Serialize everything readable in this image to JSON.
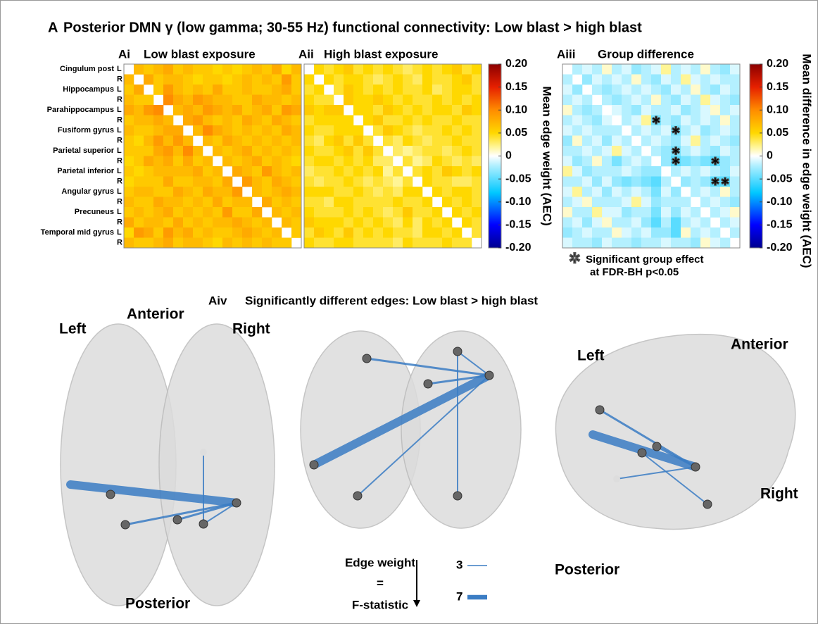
{
  "figure_label": "A",
  "title": "Posterior DMN γ (low gamma; 30-55 Hz) functional connectivity: Low blast > high blast",
  "regions": [
    "Cingulum post",
    "Hippocampus",
    "Parahippocampus",
    "Fusiform gyrus",
    "Parietal superior",
    "Parietal inferior",
    "Angular gyrus",
    "Precuneus",
    "Temporal mid gyrus"
  ],
  "sides": [
    "L",
    "R"
  ],
  "chart_data": [
    {
      "type": "heatmap",
      "panel": "Ai",
      "title": "Low blast exposure",
      "zlim": [
        -0.2,
        0.2
      ],
      "zticks": [
        {
          "value": 0.2,
          "label": "0.20"
        },
        0.15,
        {
          "value": 0.1,
          "label": "0.10"
        },
        0.05,
        0,
        -0.05,
        {
          "value": -0.1,
          "label": "-0.10"
        },
        -0.15,
        {
          "value": -0.2,
          "label": "-0.20"
        }
      ],
      "colorbar_label": "Mean edge weight (AEC)",
      "values": [
        [
          null,
          0.07,
          0.06,
          0.07,
          0.08,
          0.06,
          0.07,
          0.06,
          0.06,
          0.05,
          0.06,
          0.05,
          0.06,
          0.07,
          0.06,
          0.08,
          0.05,
          0.07
        ],
        [
          0.07,
          null,
          0.08,
          0.06,
          0.07,
          0.07,
          0.06,
          0.05,
          0.06,
          0.06,
          0.05,
          0.06,
          0.07,
          0.06,
          0.07,
          0.06,
          0.09,
          0.06
        ],
        [
          0.06,
          0.08,
          null,
          0.06,
          0.09,
          0.07,
          0.06,
          0.07,
          0.06,
          0.08,
          0.06,
          0.06,
          0.07,
          0.06,
          0.06,
          0.07,
          0.08,
          0.06
        ],
        [
          0.07,
          0.06,
          0.06,
          null,
          0.1,
          0.08,
          0.07,
          0.09,
          0.08,
          0.07,
          0.07,
          0.06,
          0.06,
          0.08,
          0.07,
          0.07,
          0.06,
          0.07
        ],
        [
          0.08,
          0.07,
          0.09,
          0.1,
          null,
          0.07,
          0.08,
          0.07,
          0.09,
          0.08,
          0.07,
          0.08,
          0.06,
          0.07,
          0.08,
          0.06,
          0.09,
          0.08
        ],
        [
          0.06,
          0.07,
          0.07,
          0.08,
          0.07,
          null,
          0.08,
          0.09,
          0.07,
          0.06,
          0.07,
          0.06,
          0.08,
          0.07,
          0.06,
          0.08,
          0.07,
          0.06
        ],
        [
          0.07,
          0.06,
          0.06,
          0.07,
          0.08,
          0.08,
          null,
          0.07,
          0.1,
          0.08,
          0.07,
          0.06,
          0.07,
          0.06,
          0.07,
          0.06,
          0.08,
          0.07
        ],
        [
          0.06,
          0.05,
          0.07,
          0.09,
          0.07,
          0.09,
          0.07,
          null,
          0.07,
          0.06,
          0.08,
          0.07,
          0.06,
          0.07,
          0.06,
          0.07,
          0.06,
          0.07
        ],
        [
          0.06,
          0.06,
          0.06,
          0.08,
          0.09,
          0.07,
          0.1,
          0.07,
          null,
          0.07,
          0.06,
          0.07,
          0.08,
          0.06,
          0.07,
          0.06,
          0.07,
          0.06
        ],
        [
          0.05,
          0.06,
          0.08,
          0.07,
          0.08,
          0.06,
          0.08,
          0.06,
          0.07,
          null,
          0.07,
          0.06,
          0.07,
          0.08,
          0.06,
          0.07,
          0.06,
          0.05
        ],
        [
          0.06,
          0.05,
          0.06,
          0.07,
          0.07,
          0.07,
          0.07,
          0.08,
          0.06,
          0.07,
          null,
          0.08,
          0.07,
          0.06,
          0.09,
          0.07,
          0.06,
          0.07
        ],
        [
          0.05,
          0.06,
          0.06,
          0.06,
          0.08,
          0.06,
          0.06,
          0.07,
          0.07,
          0.06,
          0.08,
          null,
          0.09,
          0.07,
          0.06,
          0.08,
          0.07,
          0.06
        ],
        [
          0.06,
          0.07,
          0.07,
          0.06,
          0.06,
          0.08,
          0.07,
          0.06,
          0.08,
          0.07,
          0.07,
          0.09,
          null,
          0.07,
          0.06,
          0.07,
          0.08,
          0.07
        ],
        [
          0.07,
          0.06,
          0.06,
          0.08,
          0.07,
          0.07,
          0.06,
          0.07,
          0.06,
          0.08,
          0.06,
          0.07,
          0.07,
          null,
          0.08,
          0.06,
          0.07,
          0.06
        ],
        [
          0.06,
          0.07,
          0.06,
          0.07,
          0.08,
          0.06,
          0.07,
          0.06,
          0.07,
          0.06,
          0.09,
          0.06,
          0.06,
          0.08,
          null,
          0.07,
          0.06,
          0.07
        ],
        [
          0.08,
          0.06,
          0.07,
          0.07,
          0.06,
          0.08,
          0.06,
          0.07,
          0.06,
          0.07,
          0.07,
          0.08,
          0.07,
          0.06,
          0.07,
          null,
          0.07,
          0.06
        ],
        [
          0.05,
          0.09,
          0.08,
          0.06,
          0.09,
          0.07,
          0.08,
          0.06,
          0.07,
          0.06,
          0.06,
          0.07,
          0.08,
          0.07,
          0.06,
          0.07,
          null,
          0.06
        ],
        [
          0.07,
          0.06,
          0.06,
          0.07,
          0.08,
          0.06,
          0.07,
          0.07,
          0.06,
          0.05,
          0.07,
          0.06,
          0.07,
          0.06,
          0.07,
          0.06,
          0.06,
          null
        ]
      ]
    },
    {
      "type": "heatmap",
      "panel": "Aii",
      "title": "High blast exposure",
      "zlim": [
        -0.2,
        0.2
      ],
      "values": [
        [
          null,
          0.05,
          0.04,
          0.05,
          0.06,
          0.04,
          0.05,
          0.04,
          0.05,
          0.04,
          0.03,
          0.04,
          0.05,
          0.04,
          0.05,
          0.06,
          0.04,
          0.05
        ],
        [
          0.05,
          null,
          0.05,
          0.04,
          0.05,
          0.05,
          0.04,
          0.03,
          0.04,
          0.05,
          0.04,
          0.03,
          0.05,
          0.04,
          0.04,
          0.05,
          0.06,
          0.04
        ],
        [
          0.04,
          0.05,
          null,
          0.04,
          0.06,
          0.05,
          0.04,
          0.05,
          0.04,
          0.05,
          0.04,
          0.04,
          0.05,
          0.03,
          0.04,
          0.05,
          0.05,
          0.04
        ],
        [
          0.05,
          0.04,
          0.04,
          null,
          0.06,
          0.05,
          0.05,
          0.06,
          0.05,
          0.04,
          0.05,
          0.04,
          0.04,
          0.05,
          0.04,
          0.05,
          0.04,
          0.05
        ],
        [
          0.06,
          0.05,
          0.06,
          0.06,
          null,
          0.05,
          0.05,
          0.04,
          0.06,
          0.05,
          0.04,
          0.05,
          0.04,
          0.05,
          0.05,
          0.04,
          0.06,
          0.05
        ],
        [
          0.04,
          0.05,
          0.05,
          0.05,
          0.05,
          null,
          0.05,
          0.06,
          0.04,
          0.04,
          0.05,
          0.04,
          0.05,
          0.04,
          0.04,
          0.05,
          0.04,
          0.04
        ],
        [
          0.05,
          0.04,
          0.04,
          0.05,
          0.05,
          0.05,
          null,
          0.04,
          0.06,
          0.05,
          0.04,
          0.03,
          0.04,
          0.04,
          0.05,
          0.04,
          0.05,
          0.04
        ],
        [
          0.04,
          0.03,
          0.05,
          0.06,
          0.04,
          0.06,
          0.04,
          null,
          0.04,
          0.03,
          0.05,
          0.04,
          0.03,
          0.04,
          0.04,
          0.05,
          0.04,
          0.04
        ],
        [
          0.05,
          0.04,
          0.04,
          0.05,
          0.06,
          0.04,
          0.06,
          0.04,
          null,
          0.03,
          0.02,
          0.03,
          0.04,
          0.04,
          0.03,
          0.04,
          0.05,
          0.04
        ],
        [
          0.04,
          0.05,
          0.05,
          0.04,
          0.05,
          0.04,
          0.05,
          0.03,
          0.03,
          null,
          0.04,
          0.02,
          0.03,
          0.05,
          0.04,
          0.03,
          0.04,
          0.03
        ],
        [
          0.03,
          0.04,
          0.04,
          0.05,
          0.04,
          0.05,
          0.04,
          0.05,
          0.02,
          0.04,
          null,
          0.04,
          0.05,
          0.04,
          0.06,
          0.05,
          0.04,
          0.05
        ],
        [
          0.04,
          0.03,
          0.04,
          0.04,
          0.05,
          0.04,
          0.03,
          0.04,
          0.03,
          0.02,
          0.04,
          null,
          0.05,
          0.04,
          0.04,
          0.03,
          0.03,
          0.04
        ],
        [
          0.05,
          0.05,
          0.05,
          0.04,
          0.04,
          0.05,
          0.04,
          0.03,
          0.04,
          0.03,
          0.05,
          0.05,
          null,
          0.05,
          0.04,
          0.05,
          0.05,
          0.04
        ],
        [
          0.04,
          0.04,
          0.03,
          0.05,
          0.05,
          0.04,
          0.04,
          0.04,
          0.04,
          0.05,
          0.04,
          0.04,
          0.05,
          null,
          0.05,
          0.04,
          0.05,
          0.04
        ],
        [
          0.05,
          0.04,
          0.04,
          0.04,
          0.05,
          0.04,
          0.05,
          0.04,
          0.03,
          0.04,
          0.06,
          0.04,
          0.04,
          0.05,
          null,
          0.05,
          0.04,
          0.05
        ],
        [
          0.06,
          0.05,
          0.05,
          0.05,
          0.04,
          0.05,
          0.04,
          0.05,
          0.04,
          0.03,
          0.05,
          0.03,
          0.05,
          0.04,
          0.05,
          null,
          0.05,
          0.04
        ],
        [
          0.04,
          0.06,
          0.05,
          0.04,
          0.06,
          0.04,
          0.05,
          0.04,
          0.05,
          0.04,
          0.04,
          0.03,
          0.05,
          0.05,
          0.04,
          0.05,
          null,
          0.04
        ],
        [
          0.05,
          0.04,
          0.04,
          0.05,
          0.05,
          0.04,
          0.04,
          0.04,
          0.04,
          0.03,
          0.05,
          0.04,
          0.04,
          0.04,
          0.05,
          0.04,
          0.04,
          null
        ]
      ]
    },
    {
      "type": "heatmap",
      "panel": "Aiii",
      "title": "Group difference",
      "zlim": [
        -0.2,
        0.2
      ],
      "zticks": [
        {
          "value": 0.2,
          "label": "0.20"
        },
        0.15,
        {
          "value": 0.1,
          "label": "0.10"
        },
        0.05,
        0,
        -0.05,
        {
          "value": -0.1,
          "label": "-0.10"
        },
        -0.15,
        {
          "value": -0.2,
          "label": "-0.20"
        }
      ],
      "colorbar_label": "Mean difference in edge weight (AEC)",
      "significant": [
        [
          5,
          9
        ],
        [
          6,
          11
        ],
        [
          8,
          11
        ],
        [
          9,
          11
        ],
        [
          9,
          15
        ],
        [
          11,
          15
        ],
        [
          11,
          16
        ]
      ],
      "significance_legend": [
        "Significant group effect",
        "at FDR-BH p<0.05"
      ],
      "values": [
        [
          null,
          -0.02,
          -0.01,
          -0.02,
          0.01,
          -0.02,
          -0.01,
          -0.03,
          -0.02,
          -0.01,
          0.02,
          -0.02,
          -0.01,
          -0.02,
          0.01,
          -0.02,
          -0.03,
          -0.01
        ],
        [
          -0.02,
          null,
          -0.03,
          -0.01,
          -0.02,
          -0.01,
          -0.02,
          0.01,
          -0.02,
          -0.03,
          -0.01,
          -0.02,
          0.02,
          -0.01,
          -0.02,
          -0.01,
          -0.02,
          -0.02
        ],
        [
          -0.01,
          -0.03,
          null,
          -0.02,
          -0.03,
          -0.02,
          -0.01,
          -0.02,
          -0.01,
          -0.02,
          -0.03,
          -0.01,
          -0.02,
          0.01,
          -0.02,
          -0.03,
          -0.01,
          -0.02
        ],
        [
          -0.02,
          -0.01,
          -0.02,
          null,
          -0.02,
          -0.03,
          -0.02,
          -0.01,
          -0.02,
          0.01,
          -0.02,
          -0.03,
          -0.01,
          -0.02,
          0.02,
          -0.01,
          -0.02,
          -0.03
        ],
        [
          0.01,
          -0.02,
          -0.03,
          -0.02,
          null,
          -0.01,
          -0.02,
          -0.03,
          -0.01,
          -0.02,
          -0.02,
          -0.01,
          -0.03,
          -0.02,
          -0.01,
          0.01,
          -0.02,
          -0.01
        ],
        [
          -0.02,
          -0.01,
          -0.02,
          -0.03,
          -0.01,
          null,
          -0.02,
          -0.01,
          0.02,
          -0.04,
          -0.02,
          -0.03,
          -0.01,
          -0.02,
          -0.01,
          -0.02,
          0.01,
          -0.02
        ],
        [
          -0.01,
          -0.02,
          -0.01,
          -0.02,
          -0.02,
          -0.02,
          null,
          -0.02,
          -0.01,
          -0.02,
          -0.01,
          -0.04,
          -0.02,
          -0.01,
          -0.03,
          -0.02,
          -0.01,
          -0.02
        ],
        [
          -0.03,
          0.01,
          -0.02,
          -0.01,
          -0.03,
          -0.01,
          -0.02,
          null,
          -0.02,
          -0.01,
          -0.02,
          -0.03,
          -0.01,
          0.02,
          -0.02,
          -0.01,
          -0.02,
          -0.03
        ],
        [
          -0.02,
          -0.02,
          -0.01,
          -0.02,
          -0.01,
          0.02,
          -0.01,
          -0.02,
          null,
          -0.02,
          -0.03,
          -0.04,
          -0.02,
          -0.01,
          -0.02,
          -0.03,
          -0.01,
          -0.02
        ],
        [
          -0.01,
          -0.03,
          -0.02,
          0.01,
          -0.02,
          -0.04,
          -0.02,
          -0.01,
          -0.02,
          null,
          -0.03,
          -0.05,
          -0.04,
          -0.03,
          -0.04,
          -0.05,
          -0.03,
          -0.02
        ],
        [
          0.02,
          -0.01,
          -0.03,
          -0.02,
          -0.02,
          -0.02,
          -0.01,
          -0.02,
          -0.03,
          -0.03,
          null,
          -0.02,
          -0.01,
          -0.02,
          -0.01,
          -0.02,
          -0.03,
          -0.01
        ],
        [
          -0.02,
          -0.02,
          -0.01,
          -0.03,
          -0.01,
          -0.03,
          -0.04,
          -0.03,
          -0.04,
          -0.05,
          -0.02,
          null,
          -0.03,
          -0.02,
          -0.03,
          -0.05,
          -0.05,
          -0.02
        ],
        [
          -0.01,
          0.02,
          -0.02,
          -0.01,
          -0.03,
          -0.01,
          -0.02,
          -0.01,
          -0.02,
          -0.04,
          -0.01,
          -0.03,
          null,
          -0.02,
          -0.01,
          -0.02,
          0.01,
          -0.02
        ],
        [
          -0.02,
          -0.01,
          0.01,
          -0.02,
          -0.02,
          -0.02,
          -0.01,
          0.02,
          -0.01,
          -0.03,
          -0.02,
          -0.02,
          -0.02,
          null,
          -0.02,
          -0.01,
          -0.02,
          -0.03
        ],
        [
          0.01,
          -0.02,
          -0.02,
          0.02,
          -0.01,
          -0.01,
          -0.03,
          -0.02,
          -0.02,
          -0.04,
          -0.01,
          -0.03,
          -0.01,
          -0.02,
          null,
          -0.02,
          -0.01,
          0.01
        ],
        [
          -0.02,
          -0.01,
          -0.03,
          -0.01,
          0.01,
          -0.02,
          -0.02,
          -0.01,
          -0.03,
          -0.05,
          -0.02,
          -0.05,
          -0.02,
          -0.01,
          -0.02,
          null,
          -0.02,
          -0.01
        ],
        [
          -0.03,
          -0.02,
          -0.01,
          -0.02,
          -0.02,
          0.01,
          -0.01,
          -0.02,
          -0.01,
          -0.03,
          -0.03,
          -0.05,
          0.01,
          -0.02,
          -0.01,
          -0.02,
          null,
          -0.02
        ],
        [
          -0.01,
          -0.02,
          -0.02,
          -0.03,
          -0.01,
          -0.02,
          -0.02,
          -0.03,
          -0.02,
          -0.02,
          -0.01,
          -0.02,
          -0.02,
          -0.03,
          0.01,
          -0.01,
          -0.02,
          null
        ]
      ]
    }
  ],
  "brain": {
    "panel": "Aiv",
    "title": "Significantly different edges: Low blast > high blast",
    "top_view": {
      "left": "Left",
      "front": "Anterior",
      "right": "Right",
      "back": "Posterior"
    },
    "side_view": {
      "left": "Left",
      "front": "Anterior",
      "right": "Right",
      "back": "Posterior"
    },
    "edge_legend": {
      "title": "Edge weight",
      "equals": "=",
      "measure": "F-statistic",
      "items": [
        3,
        7
      ]
    }
  }
}
